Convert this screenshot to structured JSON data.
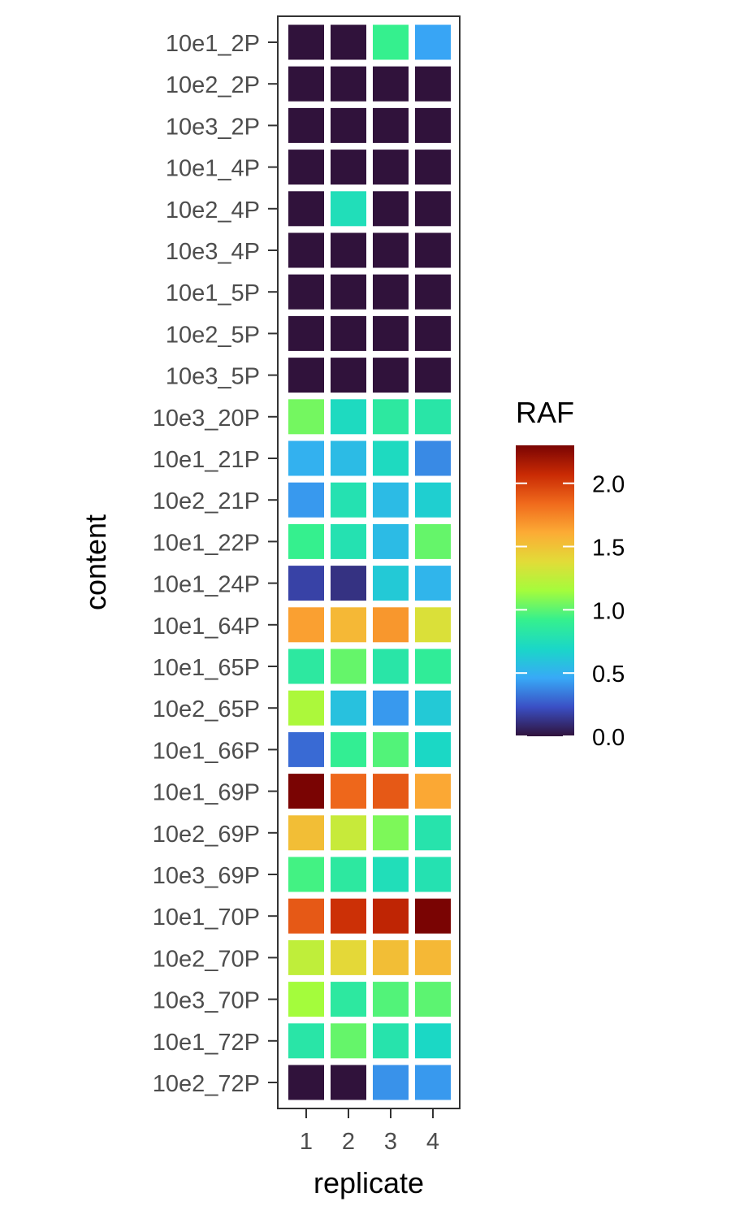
{
  "chart_data": {
    "type": "heatmap",
    "x_categories": [
      "1",
      "2",
      "3",
      "4"
    ],
    "y_categories": [
      "10e1_2P",
      "10e2_2P",
      "10e3_2P",
      "10e1_4P",
      "10e2_4P",
      "10e3_4P",
      "10e1_5P",
      "10e2_5P",
      "10e3_5P",
      "10e3_20P",
      "10e1_21P",
      "10e2_21P",
      "10e1_22P",
      "10e1_24P",
      "10e1_64P",
      "10e1_65P",
      "10e2_65P",
      "10e1_66P",
      "10e1_69P",
      "10e2_69P",
      "10e3_69P",
      "10e1_70P",
      "10e2_70P",
      "10e3_70P",
      "10e1_72P",
      "10e2_72P"
    ],
    "values": [
      [
        0.0,
        0.0,
        0.92,
        0.45
      ],
      [
        0.0,
        0.0,
        0.0,
        0.0
      ],
      [
        0.0,
        0.0,
        0.0,
        0.0
      ],
      [
        0.0,
        0.0,
        0.0,
        0.0
      ],
      [
        0.0,
        0.75,
        0.0,
        0.0
      ],
      [
        0.0,
        0.0,
        0.0,
        0.0
      ],
      [
        0.0,
        0.0,
        0.0,
        0.0
      ],
      [
        0.0,
        0.0,
        0.0,
        0.0
      ],
      [
        0.0,
        0.0,
        0.0,
        0.0
      ],
      [
        1.05,
        0.72,
        0.85,
        0.82
      ],
      [
        0.5,
        0.55,
        0.72,
        0.38
      ],
      [
        0.42,
        0.78,
        0.55,
        0.65
      ],
      [
        0.92,
        0.78,
        0.55,
        1.02
      ],
      [
        0.18,
        0.12,
        0.62,
        0.52
      ],
      [
        1.65,
        1.55,
        1.68,
        1.35
      ],
      [
        0.85,
        1.02,
        0.82,
        0.88
      ],
      [
        1.18,
        0.58,
        0.42,
        0.62
      ],
      [
        0.3,
        0.9,
        0.98,
        0.7
      ],
      [
        2.3,
        1.85,
        1.9,
        1.62
      ],
      [
        1.52,
        1.28,
        1.07,
        0.8
      ],
      [
        0.95,
        0.85,
        0.75,
        0.78
      ],
      [
        1.9,
        2.05,
        2.1,
        2.3
      ],
      [
        1.25,
        1.4,
        1.52,
        1.55
      ],
      [
        1.15,
        0.85,
        0.98,
        1.0
      ],
      [
        0.82,
        1.02,
        0.8,
        0.7
      ],
      [
        0.0,
        0.0,
        0.4,
        0.42
      ]
    ],
    "xlabel": "replicate",
    "ylabel": "content",
    "color_scale": {
      "title": "RAF",
      "min": 0.0,
      "max": 2.3,
      "ticks": [
        "0.0",
        "0.5",
        "1.0",
        "1.5",
        "2.0"
      ],
      "stops": [
        "#30123b",
        "#3a4fc4",
        "#38a9f7",
        "#1ad7c8",
        "#35f08e",
        "#a4fc3c",
        "#e2dc38",
        "#fcab35",
        "#f06a1c",
        "#c92a04",
        "#7a0403"
      ]
    },
    "legend_position": "right",
    "grid": false
  }
}
